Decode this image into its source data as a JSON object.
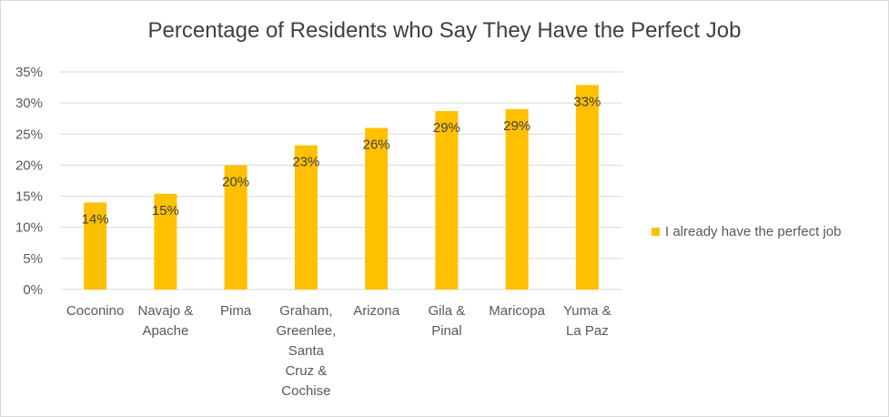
{
  "chart_data": {
    "type": "bar",
    "title": "Percentage of Residents who Say They Have the Perfect Job",
    "xlabel": "",
    "ylabel": "",
    "categories": [
      [
        "Coconino"
      ],
      [
        "Navajo &",
        "Apache"
      ],
      [
        "Pima"
      ],
      [
        "Graham,",
        "Greenlee,",
        "Santa",
        "Cruz &",
        "Cochise"
      ],
      [
        "Arizona"
      ],
      [
        "Gila &",
        "Pinal"
      ],
      [
        "Maricopa"
      ],
      [
        "Yuma &",
        "La Paz"
      ]
    ],
    "series": [
      {
        "name": "I already have the perfect job",
        "values": [
          14,
          15.4,
          20,
          23.2,
          26,
          28.7,
          29,
          32.9
        ],
        "data_labels": [
          "14%",
          "15%",
          "20%",
          "23%",
          "26%",
          "29%",
          "29%",
          "33%"
        ]
      }
    ],
    "ylim": [
      0,
      35
    ],
    "yticks": [
      0,
      5,
      10,
      15,
      20,
      25,
      30,
      35
    ],
    "ytick_labels": [
      "0%",
      "5%",
      "10%",
      "15%",
      "20%",
      "25%",
      "30%",
      "35%"
    ],
    "grid": true,
    "legend_position": "right",
    "colors": {
      "bar": "#ffc000",
      "grid": "#d9d9d9",
      "text": "#595959"
    }
  }
}
